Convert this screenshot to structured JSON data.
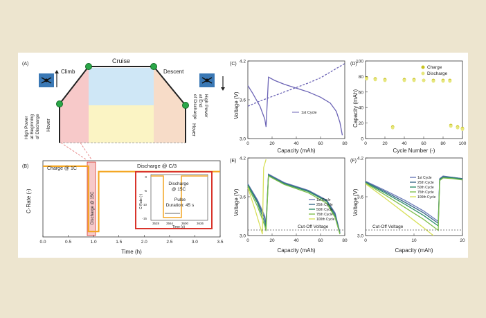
{
  "colors": {
    "page_bg": "#ede5cf",
    "panel_bg": "#ffffff",
    "node_green": "#2aa748",
    "hover_red": "#f7c9c9",
    "cruise_blue": "#cfe7f6",
    "cruise_yellow": "#fbf4c4",
    "orange": "#f4a623",
    "red_box": "#d9342b",
    "purple": "#6b63b5"
  },
  "icons": [
    "drone-icon-left",
    "drone-icon-right"
  ],
  "panel_a": {
    "label": "(A)",
    "climb": "Climb",
    "cruise": "Cruise",
    "descent": "Descent",
    "hover_left": "Hover",
    "hover_right": "Hover",
    "power_begin_1": "High Power",
    "power_begin_2": "at Beginning",
    "power_begin_3": "of Discharge",
    "power_end_1": "High Power",
    "power_end_2": "at End",
    "power_end_3": "of Discharge"
  },
  "chart_data": [
    {
      "panel": "(B)",
      "type": "line",
      "xlabel": "Time (h)",
      "ylabel": "C-Rate (-)",
      "xlim": [
        0,
        3.5
      ],
      "xticks": [
        "0.0",
        "0.5",
        "1.0",
        "1.5",
        "2.0",
        "2.5",
        "3.0",
        "3.5"
      ],
      "annotations": [
        "Charge @ 1C",
        "Discharge @ C/3",
        "Discharge @ 15C"
      ],
      "series": [
        {
          "x": [
            0.0,
            0.9,
            0.9,
            1.1,
            1.1,
            3.5
          ],
          "y": [
            1,
            1,
            -15,
            -15,
            -0.33,
            -0.33
          ]
        }
      ],
      "inset": {
        "xlabel": "Time (s)",
        "ylabel": "C-Rate (-)",
        "xticks": [
          "3528",
          "3564",
          "3600",
          "3636"
        ],
        "yticks": [
          "0",
          "-5",
          "-10",
          "-15"
        ],
        "annotation_1": "Discharge",
        "annotation_2": "@ 15C",
        "pulse_1": "Pulse",
        "pulse_2": "Duration: 45 s"
      }
    },
    {
      "panel": "(C)",
      "type": "line",
      "xlabel": "Capacity (mAh)",
      "ylabel": "Voltage (V)",
      "xlim": [
        0,
        80
      ],
      "ylim": [
        3.0,
        4.2
      ],
      "xticks": [
        "0",
        "20",
        "40",
        "60",
        "80"
      ],
      "yticks": [
        "3.0",
        "3.6",
        "4.2"
      ],
      "legend": "1st Cycle",
      "series": [
        {
          "name": "1st Cycle",
          "style": "solid",
          "x": [
            0,
            4,
            10,
            14,
            15,
            17,
            22,
            30,
            40,
            50,
            60,
            68,
            73,
            76,
            78
          ],
          "y": [
            3.82,
            3.7,
            3.5,
            3.3,
            3.18,
            3.95,
            3.9,
            3.84,
            3.78,
            3.72,
            3.64,
            3.55,
            3.42,
            3.25,
            3.05
          ]
        },
        {
          "name": "1st Cycle",
          "style": "dashed",
          "x": [
            0,
            10,
            20,
            30,
            40,
            50,
            60,
            70,
            80
          ],
          "y": [
            3.5,
            3.58,
            3.65,
            3.72,
            3.79,
            3.86,
            3.94,
            4.05,
            4.16
          ]
        }
      ]
    },
    {
      "panel": "(D)",
      "type": "scatter",
      "xlabel": "Cycle Number (-)",
      "ylabel": "Capacity (mAh)",
      "xlim": [
        0,
        100
      ],
      "ylim": [
        0,
        100
      ],
      "xticks": [
        "0",
        "20",
        "40",
        "60",
        "80",
        "100"
      ],
      "yticks": [
        "0",
        "20",
        "40",
        "60",
        "80",
        "100"
      ],
      "legend_position": "top-right",
      "series": [
        {
          "name": "Charge",
          "color": "#c7c21f",
          "x": [
            1,
            10,
            20,
            28,
            40,
            50,
            60,
            70,
            80,
            87,
            88,
            95,
            100
          ],
          "y": [
            78,
            77,
            76,
            15,
            76,
            76,
            75,
            75,
            75,
            75,
            17,
            15,
            13
          ]
        },
        {
          "name": "Discharge",
          "color": "#e6e67c",
          "x": [
            1,
            10,
            20,
            28,
            40,
            50,
            60,
            70,
            80,
            87,
            88,
            95,
            100
          ],
          "y": [
            77,
            76,
            75,
            14,
            75,
            75,
            75,
            74,
            74,
            74,
            16,
            14,
            12
          ]
        }
      ]
    },
    {
      "panel": "(E)",
      "type": "line",
      "xlabel": "Capacity (mAh)",
      "ylabel": "Voltage (V)",
      "xlim": [
        0,
        80
      ],
      "ylim": [
        3.0,
        4.2
      ],
      "xticks": [
        "0",
        "20",
        "40",
        "60",
        "80"
      ],
      "yticks": [
        "3.0",
        "3.6",
        "4.2"
      ],
      "annotation": "Cut-Off Voltage",
      "cutoff": 3.0,
      "series": [
        {
          "name": "1st Cycle",
          "color": "#6a7ab8",
          "x": [
            0,
            8,
            14,
            15,
            17,
            30,
            50,
            65,
            72,
            76
          ],
          "y": [
            3.8,
            3.55,
            3.3,
            3.2,
            3.95,
            3.82,
            3.7,
            3.55,
            3.35,
            3.05
          ]
        },
        {
          "name": "25th Cycle",
          "color": "#3b6a8a",
          "x": [
            0,
            8,
            14,
            15,
            17,
            30,
            50,
            65,
            72,
            76
          ],
          "y": [
            3.79,
            3.53,
            3.26,
            3.17,
            3.94,
            3.81,
            3.69,
            3.54,
            3.33,
            3.04
          ]
        },
        {
          "name": "50th Cycle",
          "color": "#2f8f6a",
          "x": [
            0,
            8,
            14,
            15,
            17,
            30,
            50,
            65,
            72,
            76
          ],
          "y": [
            3.78,
            3.5,
            3.2,
            3.12,
            3.93,
            3.8,
            3.68,
            3.53,
            3.3,
            3.03
          ]
        },
        {
          "name": "75th Cycle",
          "color": "#7fbf4c",
          "x": [
            0,
            8,
            14,
            15,
            17,
            30,
            50,
            65,
            72,
            76
          ],
          "y": [
            3.76,
            3.45,
            3.15,
            3.07,
            3.92,
            3.79,
            3.66,
            3.5,
            3.28,
            3.02
          ]
        },
        {
          "name": "100th Cycle",
          "color": "#d8e05a",
          "x": [
            0,
            6,
            10,
            12,
            13,
            15
          ],
          "y": [
            3.74,
            3.4,
            3.15,
            3.02,
            4.05,
            4.18
          ]
        }
      ]
    },
    {
      "panel": "(F)",
      "type": "line",
      "xlabel": "Capacity (mAh)",
      "ylabel": "Voltage (V)",
      "xlim": [
        0,
        20
      ],
      "ylim": [
        3.0,
        4.2
      ],
      "xticks": [
        "0",
        "10",
        "20"
      ],
      "yticks": [
        "3.0",
        "3.6",
        "4.2"
      ],
      "annotation": "Cut-Off Voltage",
      "cutoff": 3.0,
      "series": [
        {
          "name": "1st Cycle",
          "color": "#6a7ab8",
          "x": [
            0,
            4,
            8,
            12,
            15,
            15.3,
            16,
            18,
            20
          ],
          "y": [
            3.84,
            3.7,
            3.55,
            3.38,
            3.22,
            3.88,
            3.92,
            3.9,
            3.88
          ]
        },
        {
          "name": "25th Cycle",
          "color": "#3b6a8a",
          "x": [
            0,
            4,
            8,
            12,
            15,
            15.3,
            16,
            18,
            20
          ],
          "y": [
            3.83,
            3.68,
            3.52,
            3.35,
            3.19,
            3.87,
            3.91,
            3.9,
            3.88
          ]
        },
        {
          "name": "50th Cycle",
          "color": "#2f8f6a",
          "x": [
            0,
            4,
            8,
            12,
            15,
            15.3,
            16,
            18,
            20
          ],
          "y": [
            3.82,
            3.66,
            3.49,
            3.31,
            3.15,
            3.86,
            3.9,
            3.89,
            3.87
          ]
        },
        {
          "name": "75th Cycle",
          "color": "#7fbf4c",
          "x": [
            0,
            4,
            8,
            12,
            15,
            15.3,
            16,
            18,
            20
          ],
          "y": [
            3.81,
            3.63,
            3.44,
            3.25,
            3.08,
            3.85,
            3.89,
            3.88,
            3.86
          ]
        },
        {
          "name": "100th Cycle",
          "color": "#d8e05a",
          "x": [
            0,
            4,
            8,
            12,
            14
          ],
          "y": [
            3.8,
            3.58,
            3.35,
            3.12,
            3.0
          ]
        }
      ]
    }
  ]
}
